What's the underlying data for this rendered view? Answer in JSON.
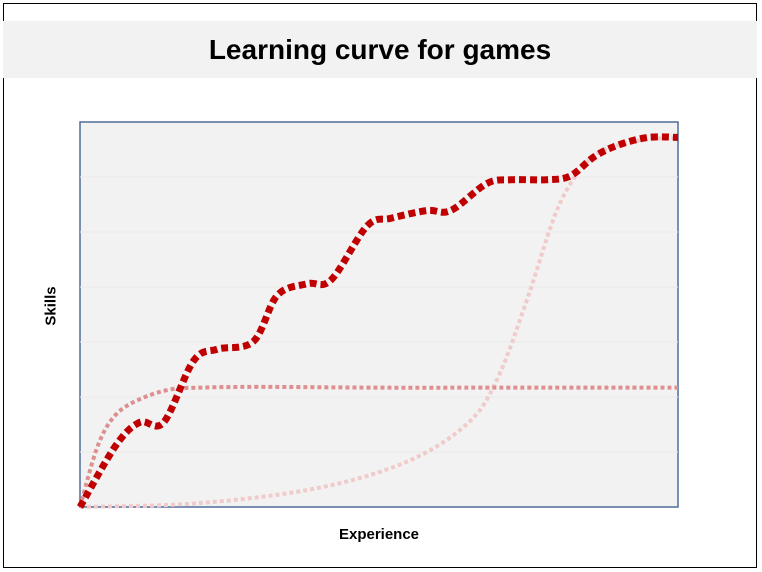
{
  "chart_data": {
    "type": "line",
    "title": "Learning curve for games",
    "xlabel": "Experience",
    "ylabel": "Skills",
    "xlim": [
      0,
      100
    ],
    "ylim": [
      0,
      100
    ],
    "grid": true,
    "legend": "none",
    "series": [
      {
        "color": "#c00000",
        "style": "dotted-thick",
        "x": [
          0,
          6,
          10,
          14,
          19,
          23,
          29,
          33,
          38,
          42,
          48,
          52,
          58,
          62,
          68,
          72,
          78,
          82,
          86,
          90,
          95,
          100
        ],
        "y": [
          0,
          16,
          22,
          22,
          38,
          41,
          43,
          55,
          58,
          59,
          73,
          75,
          77,
          77,
          84,
          85,
          85,
          86,
          91,
          94,
          96,
          96
        ]
      },
      {
        "color": "#de8f8f",
        "style": "dotted",
        "x": [
          0,
          3,
          6,
          10,
          15,
          20,
          30,
          50,
          70,
          100
        ],
        "y": [
          0,
          16,
          24,
          28,
          30.5,
          31,
          31.2,
          31,
          31,
          31
        ]
      },
      {
        "color": "#f1caca",
        "style": "dotted",
        "x": [
          0,
          20,
          40,
          55,
          65,
          70,
          75,
          80,
          85,
          90,
          95,
          100
        ],
        "y": [
          0,
          1,
          5,
          12,
          22,
          34,
          55,
          78,
          90,
          94,
          95.5,
          96
        ]
      }
    ]
  }
}
